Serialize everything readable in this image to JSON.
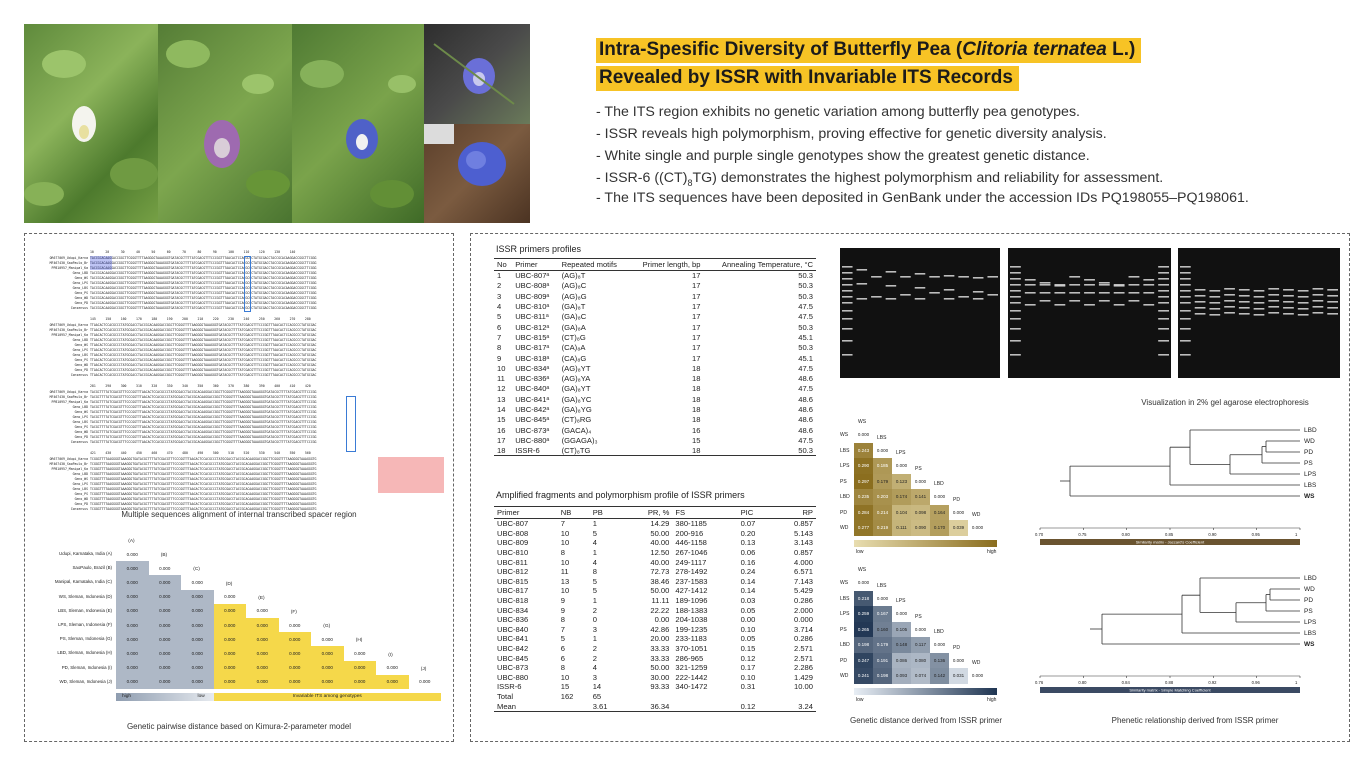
{
  "title": {
    "line1_a": "Intra-Spesific Diversity of Butterfly Pea (",
    "line1_i": "Clitoria ternatea",
    "line1_b": " L.)",
    "line2": "Revealed by ISSR with Invariable ITS Records"
  },
  "bullets": {
    "b1": "- The ITS region exhibits no genetic variation among butterfly pea genotypes.",
    "b2": "- ISSR reveals high polymorphism, proving effective for genetic diversity analysis.",
    "b3": "- White single and purple single genotypes show the greatest genetic distance.",
    "b4_a": "- ISSR-6 ((CT)",
    "b4_sub": "8",
    "b4_b": "TG) demonstrates the highest polymorphism and reliability for assessment.",
    "b5": "- The ITS sequences have been deposited in GenBank under the accession IDs PQ198055–PQ198061."
  },
  "colors": {
    "accent": "#f7c325",
    "gray_cell": "#a9b4c2",
    "yellow_cell": "#f5d84a",
    "hm_low": "#e8ddb0",
    "hm_high": "#8a6d1e",
    "hm2_low": "#e8eef5",
    "hm2_high": "#1f3552"
  },
  "alignment": {
    "caption": "Multiple sequences alignment of internal transcribed spacer region",
    "ruler1": "10      20      30      40      50      60      70      80      90      100     110     120     130     140",
    "ruler2": "145     150     160     170     180     190     200     210     220     230     240     250     260     270     280",
    "ruler3": "281     290     300     310     320     330     340     350     360     370     380     390     400     410     420",
    "ruler4": "421     430     440     450     460     470     480     490     500     510     520     530     540     550     560",
    "names": [
      "OR677069_Udupi_Karna",
      "MF467430_SaoPaulo_Br",
      "PP810957_Manipal_Ka",
      "Geno_LBD",
      "Geno_WS",
      "Geno_LPS",
      "Geno_LBS",
      "Geno_PS",
      "Geno_WD",
      "Geno_PD",
      "Consensus"
    ]
  },
  "kimura": {
    "caption": "Genetic pairwise distance based on Kimura-2-parameter model",
    "rows": [
      "Udupi, Karnataka, India  (A)",
      "SaoPaulo, Brazil  (B)",
      "Manipal, Karnataka, India  (C)",
      "WS, Sleman, Indonesia  (D)",
      "LBS, Sleman, Indonesia  (E)",
      "LPS, Sleman, Indonesia  (F)",
      "PS, Sleman, Indonesia  (G)",
      "LBD, Sleman, Indonesia  (H)",
      "PD, Sleman, Indonesia  (I)",
      "WD, Sleman, Indonesia  (J)"
    ],
    "cols": [
      "(A)",
      "(B)",
      "(C)",
      "(D)",
      "(E)",
      "(F)",
      "(G)",
      "(H)",
      "(I)",
      "(J)"
    ],
    "value": "0.000",
    "legend_high": "high",
    "legend_low": "low",
    "legend_inv": "Invariable ITS among genotypes"
  },
  "issr_profile": {
    "caption": "ISSR primers profiles",
    "headers": [
      "No",
      "Primer",
      "Repeated motifs",
      "Primer length, bp",
      "Annealing Temperature, °C"
    ],
    "rows": [
      [
        "1",
        "UBC-807ᵃ",
        "(AG)₈T",
        "17",
        "50.3"
      ],
      [
        "2",
        "UBC-808ᵃ",
        "(AG)₈C",
        "17",
        "50.3"
      ],
      [
        "3",
        "UBC-809ᵃ",
        "(AG)₈G",
        "17",
        "50.3"
      ],
      [
        "4",
        "UBC-810ᵃ",
        "(GA)₈T",
        "17",
        "47.5"
      ],
      [
        "5",
        "UBC-811ᵃ",
        "(GA)₈C",
        "17",
        "47.5"
      ],
      [
        "6",
        "UBC-812ᵃ",
        "(GA)₈A",
        "17",
        "50.3"
      ],
      [
        "7",
        "UBC-815ᵃ",
        "(CT)₈G",
        "17",
        "45.1"
      ],
      [
        "8",
        "UBC-817ᵃ",
        "(CA)₈A",
        "17",
        "50.3"
      ],
      [
        "9",
        "UBC-818ᵃ",
        "(CA)₈G",
        "17",
        "45.1"
      ],
      [
        "10",
        "UBC-834ᵃ",
        "(AG)₈YT",
        "18",
        "47.5"
      ],
      [
        "11",
        "UBC-836ᵃ",
        "(AG)₈YA",
        "18",
        "48.6"
      ],
      [
        "12",
        "UBC-840ᵃ",
        "(GA)₈YT",
        "18",
        "47.5"
      ],
      [
        "13",
        "UBC-841ᵃ",
        "(GA)₈YC",
        "18",
        "48.6"
      ],
      [
        "14",
        "UBC-842ᵃ",
        "(GA)₈YG",
        "18",
        "48.6"
      ],
      [
        "15",
        "UBC-845ᵃ",
        "(CT)₈RG",
        "18",
        "48.6"
      ],
      [
        "16",
        "UBC-873ᵃ",
        "(GACA)₄",
        "16",
        "48.6"
      ],
      [
        "17",
        "UBC-880ᵃ",
        "(GGAGA)₃",
        "15",
        "47.5"
      ],
      [
        "18",
        "ISSR-6",
        "(CT)₈TG",
        "18",
        "50.3"
      ]
    ]
  },
  "poly_profile": {
    "caption": "Amplified fragments and polymorphism profile of ISSR primers",
    "headers": [
      "Primer",
      "NB",
      "PB",
      "PR, %",
      "FS",
      "PIC",
      "RP"
    ],
    "rows": [
      [
        "UBC-807",
        "7",
        "1",
        "14.29",
        "380-1185",
        "0.07",
        "0.857"
      ],
      [
        "UBC-808",
        "10",
        "5",
        "50.00",
        "200-916",
        "0.20",
        "5.143"
      ],
      [
        "UBC-809",
        "10",
        "4",
        "40.00",
        "446-1158",
        "0.13",
        "3.143"
      ],
      [
        "UBC-810",
        "8",
        "1",
        "12.50",
        "267-1046",
        "0.06",
        "0.857"
      ],
      [
        "UBC-811",
        "10",
        "4",
        "40.00",
        "249-1117",
        "0.16",
        "4.000"
      ],
      [
        "UBC-812",
        "11",
        "8",
        "72.73",
        "278-1492",
        "0.24",
        "6.571"
      ],
      [
        "UBC-815",
        "13",
        "5",
        "38.46",
        "237-1583",
        "0.14",
        "7.143"
      ],
      [
        "UBC-817",
        "10",
        "5",
        "50.00",
        "427-1412",
        "0.14",
        "5.429"
      ],
      [
        "UBC-818",
        "9",
        "1",
        "11.11",
        "189-1096",
        "0.03",
        "0.286"
      ],
      [
        "UBC-834",
        "9",
        "2",
        "22.22",
        "188-1383",
        "0.05",
        "2.000"
      ],
      [
        "UBC-836",
        "8",
        "0",
        "0.00",
        "204-1038",
        "0.00",
        "0.000"
      ],
      [
        "UBC-840",
        "7",
        "3",
        "42.86",
        "199-1235",
        "0.10",
        "3.714"
      ],
      [
        "UBC-841",
        "5",
        "1",
        "20.00",
        "233-1183",
        "0.05",
        "0.286"
      ],
      [
        "UBC-842",
        "6",
        "2",
        "33.33",
        "370-1051",
        "0.15",
        "2.571"
      ],
      [
        "UBC-845",
        "6",
        "2",
        "33.33",
        "286-965",
        "0.12",
        "2.571"
      ],
      [
        "UBC-873",
        "8",
        "4",
        "50.00",
        "321-1259",
        "0.17",
        "2.286"
      ],
      [
        "UBC-880",
        "10",
        "3",
        "30.00",
        "222-1442",
        "0.10",
        "1.429"
      ],
      [
        "ISSR-6",
        "15",
        "14",
        "93.33",
        "340-1472",
        "0.31",
        "10.00"
      ],
      [
        "Total",
        "162",
        "65",
        "",
        "",
        "",
        ""
      ],
      [
        "Mean",
        "",
        "3.61",
        "36.34",
        "",
        "0.12",
        "3.24"
      ]
    ]
  },
  "gel": {
    "caption": "Visualization in 2% gel agarose electrophoresis"
  },
  "heatmap1": {
    "labels": [
      "WS",
      "LBS",
      "LPS",
      "PS",
      "LBD",
      "PD",
      "WD"
    ],
    "values": [
      [
        "0.000"
      ],
      [
        "0.243",
        "0.000"
      ],
      [
        "0.290",
        "0.185",
        "0.000"
      ],
      [
        "0.297",
        "0.179",
        "0.123",
        "0.000"
      ],
      [
        "0.235",
        "0.203",
        "0.174",
        "0.141",
        "0.000"
      ],
      [
        "0.284",
        "0.214",
        "0.104",
        "0.098",
        "0.164",
        "0.000"
      ],
      [
        "0.277",
        "0.219",
        "0.111",
        "0.090",
        "0.170",
        "0.039",
        "0.000"
      ]
    ],
    "num": [
      [
        0
      ],
      [
        0.243,
        0
      ],
      [
        0.29,
        0.185,
        0
      ],
      [
        0.297,
        0.179,
        0.123,
        0
      ],
      [
        0.235,
        0.203,
        0.174,
        0.141,
        0
      ],
      [
        0.284,
        0.214,
        0.104,
        0.098,
        0.164,
        0
      ],
      [
        0.277,
        0.219,
        0.111,
        0.09,
        0.17,
        0.039,
        0
      ]
    ],
    "low": "low",
    "high": "high"
  },
  "heatmap2": {
    "caption": "Genetic distance derived from ISSR primer",
    "labels": [
      "WS",
      "LBS",
      "LPS",
      "PS",
      "LBD",
      "PD",
      "WD"
    ],
    "values": [
      [
        "0.000"
      ],
      [
        "0.218",
        "0.000"
      ],
      [
        "0.259",
        "0.167",
        "0.000"
      ],
      [
        "0.265",
        "0.160",
        "0.105",
        "0.000"
      ],
      [
        "0.198",
        "0.179",
        "0.148",
        "0.117",
        "0.000"
      ],
      [
        "0.247",
        "0.191",
        "0.086",
        "0.080",
        "0.136",
        "0.000"
      ],
      [
        "0.241",
        "0.198",
        "0.093",
        "0.074",
        "0.142",
        "0.031",
        "0.000"
      ]
    ],
    "num": [
      [
        0
      ],
      [
        0.218,
        0
      ],
      [
        0.259,
        0.167,
        0
      ],
      [
        0.265,
        0.16,
        0.105,
        0
      ],
      [
        0.198,
        0.179,
        0.148,
        0.117,
        0
      ],
      [
        0.247,
        0.191,
        0.086,
        0.08,
        0.136,
        0
      ],
      [
        0.241,
        0.198,
        0.093,
        0.074,
        0.142,
        0.031,
        0
      ]
    ],
    "low": "low",
    "high": "high"
  },
  "dendro1": {
    "leaves": [
      "LBD",
      "WD",
      "PD",
      "PS",
      "LPS",
      "LBS",
      "WS"
    ],
    "axis": [
      "0.70",
      "0.75",
      "0.80",
      "0.85",
      "0.90",
      "0.95",
      "1"
    ],
    "axis_title": "Similarity matrix - Jaccard's Coefficient"
  },
  "dendro2": {
    "leaves": [
      "LBD",
      "WD",
      "PD",
      "PS",
      "LPS",
      "LBS",
      "WS"
    ],
    "axis": [
      "0.76",
      "0.80",
      "0.84",
      "0.88",
      "0.92",
      "0.96",
      "1"
    ],
    "axis_title": "Similarity matrix - Simple Matching Coefficient",
    "caption": "Phenetic relationship derived from ISSR primer"
  }
}
